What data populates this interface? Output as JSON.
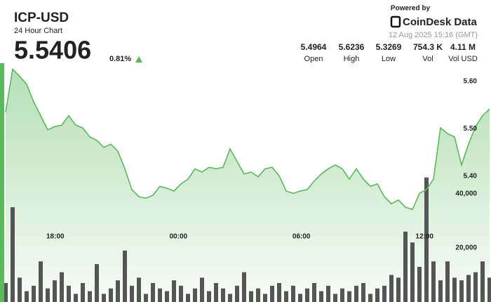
{
  "header": {
    "symbol": "ICP-USD",
    "subtitle": "24 Hour Chart",
    "price": "5.5406",
    "change": "0.81%",
    "powered_by": "Powered by",
    "brand": "CoinDesk Data",
    "timestamp": "12 Aug 2025 15:16 (GMT)"
  },
  "stats": [
    {
      "value": "5.4964",
      "label": "Open"
    },
    {
      "value": "5.6236",
      "label": "High"
    },
    {
      "value": "5.3269",
      "label": "Low"
    },
    {
      "value": "754.3 K",
      "label": "Vol"
    },
    {
      "value": "4.11 M",
      "label": "Vol USD"
    }
  ],
  "chart_data": [
    {
      "type": "area",
      "color": "#5cb85c",
      "values": [
        5.535,
        5.626,
        5.611,
        5.594,
        5.557,
        5.528,
        5.498,
        5.505,
        5.508,
        5.528,
        5.508,
        5.502,
        5.483,
        5.476,
        5.461,
        5.468,
        5.453,
        5.416,
        5.372,
        5.357,
        5.354,
        5.36,
        5.379,
        5.375,
        5.369,
        5.384,
        5.394,
        5.416,
        5.409,
        5.419,
        5.416,
        5.419,
        5.458,
        5.431,
        5.405,
        5.409,
        5.399,
        5.416,
        5.419,
        5.401,
        5.369,
        5.364,
        5.369,
        5.372,
        5.39,
        5.405,
        5.416,
        5.424,
        5.416,
        5.394,
        5.416,
        5.394,
        5.379,
        5.384,
        5.357,
        5.342,
        5.35,
        5.335,
        5.33,
        5.364,
        5.372,
        5.394,
        5.502,
        5.49,
        5.483,
        5.424,
        5.468,
        5.505,
        5.528,
        5.542
      ],
      "xlim": [
        0,
        69
      ],
      "xticks": [
        {
          "value": 7.08,
          "label": "18:00"
        },
        {
          "value": 24.63,
          "label": "00:00"
        },
        {
          "value": 42.17,
          "label": "06:00"
        },
        {
          "value": 59.72,
          "label": "12:00"
        }
      ],
      "ylim": [
        5.135,
        5.683
      ],
      "yticks": [
        {
          "value": 5.4,
          "label": "5.40"
        },
        {
          "value": 5.5,
          "label": "5.50"
        },
        {
          "value": 5.6,
          "label": "5.60"
        }
      ]
    },
    {
      "type": "bar",
      "color": "#555555",
      "values": [
        7000,
        35000,
        9000,
        4000,
        6000,
        15000,
        5000,
        8000,
        11000,
        6000,
        3000,
        7000,
        4000,
        14000,
        3000,
        5000,
        8000,
        19000,
        6000,
        9000,
        3000,
        7000,
        5000,
        4000,
        8000,
        6000,
        3000,
        5000,
        9000,
        4000,
        7000,
        5000,
        3000,
        6000,
        11000,
        4000,
        5000,
        3000,
        6000,
        7000,
        4000,
        6000,
        3000,
        5000,
        7000,
        4000,
        6000,
        3000,
        5000,
        4000,
        6000,
        7000,
        3000,
        5000,
        6000,
        10000,
        9000,
        26000,
        22000,
        13000,
        46000,
        15000,
        8000,
        15000,
        9000,
        8000,
        10000,
        11000,
        15000,
        9000
      ],
      "xlim": [
        0,
        69
      ],
      "ylim": [
        0,
        96000
      ],
      "yticks": [
        {
          "value": 20000,
          "label": "20,000"
        },
        {
          "value": 40000,
          "label": "40,000"
        }
      ]
    }
  ]
}
